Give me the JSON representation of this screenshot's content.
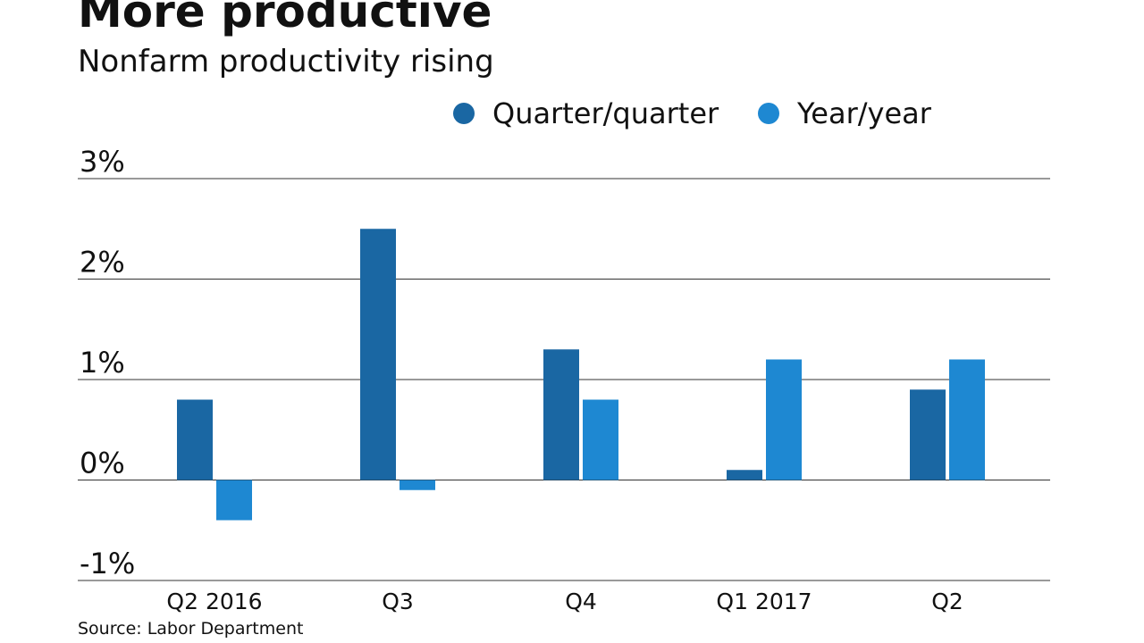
{
  "chart_data": {
    "type": "bar",
    "title": "More productive",
    "subtitle": "Nonfarm productivity rising",
    "categories": [
      "Q2 2016",
      "Q3",
      "Q4",
      "Q1 2017",
      "Q2"
    ],
    "series": [
      {
        "name": "Quarter/quarter",
        "color": "#1a67a3",
        "values": [
          0.8,
          2.5,
          1.3,
          0.1,
          0.9
        ]
      },
      {
        "name": "Year/year",
        "color": "#1e88d2",
        "values": [
          -0.4,
          -0.1,
          0.8,
          1.2,
          1.2
        ]
      }
    ],
    "ylim": [
      -1,
      3
    ],
    "yticks": [
      {
        "value": -1,
        "label": "-1%"
      },
      {
        "value": 0,
        "label": "0%"
      },
      {
        "value": 1,
        "label": "1%"
      },
      {
        "value": 2,
        "label": "2%"
      },
      {
        "value": 3,
        "label": "3%"
      }
    ],
    "grid": true,
    "source": "Source: Labor Department"
  }
}
